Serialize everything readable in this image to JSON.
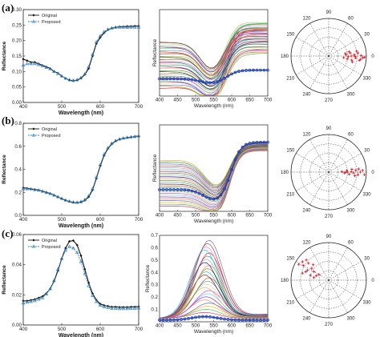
{
  "panel_labels": [
    "(a)",
    "(b)",
    "(c)"
  ],
  "chart_data": [
    {
      "type": "line",
      "panel": "a-left",
      "xlabel": "Wavelength (nm)",
      "ylabel": "Reflectance",
      "xlim": [
        400,
        700
      ],
      "ylim": [
        0,
        0.3
      ],
      "xticks": [
        "400",
        "500",
        "600",
        "700"
      ],
      "yticks": [
        "0.00",
        "0.05",
        "0.10",
        "0.15",
        "0.20",
        "0.25",
        "0.30"
      ],
      "legend": [
        "Original",
        "Proposed"
      ],
      "legend_position": "top-left",
      "x": [
        400,
        410,
        420,
        430,
        440,
        450,
        460,
        470,
        480,
        490,
        500,
        510,
        520,
        530,
        540,
        550,
        560,
        570,
        580,
        590,
        600,
        610,
        620,
        630,
        640,
        650,
        660,
        670,
        680,
        690,
        700
      ],
      "series": [
        {
          "name": "Original",
          "color": "#111111",
          "marker": "diamond",
          "values": [
            0.14,
            0.135,
            0.13,
            0.13,
            0.125,
            0.12,
            0.115,
            0.11,
            0.1,
            0.095,
            0.085,
            0.078,
            0.072,
            0.07,
            0.072,
            0.078,
            0.09,
            0.11,
            0.15,
            0.19,
            0.21,
            0.225,
            0.235,
            0.24,
            0.242,
            0.245,
            0.245,
            0.246,
            0.246,
            0.247,
            0.247
          ]
        },
        {
          "name": "Proposed",
          "color": "#3b86c4",
          "marker": "triangle",
          "values": [
            0.12,
            0.125,
            0.125,
            0.125,
            0.122,
            0.118,
            0.113,
            0.108,
            0.1,
            0.093,
            0.085,
            0.078,
            0.073,
            0.071,
            0.073,
            0.08,
            0.092,
            0.115,
            0.155,
            0.195,
            0.215,
            0.228,
            0.236,
            0.24,
            0.243,
            0.243,
            0.243,
            0.242,
            0.243,
            0.243,
            0.243
          ]
        }
      ]
    },
    {
      "type": "line",
      "panel": "a-middle",
      "xlabel": "Wavelength (nm)",
      "ylabel": "Reflectance",
      "xlim": [
        400,
        700
      ],
      "xticks": [
        "400",
        "450",
        "500",
        "550",
        "600",
        "650",
        "700"
      ],
      "highlight_color": "#1f3fb5",
      "n_background_lines": 36
    },
    {
      "type": "scatter",
      "panel": "a-right",
      "projection": "polar",
      "angle_labels": [
        "0",
        "30",
        "60",
        "90",
        "120",
        "150",
        "180",
        "210",
        "240",
        "270",
        "300",
        "330"
      ],
      "point_color": "#e0202a",
      "points": [
        [
          0.4,
          -6
        ],
        [
          0.46,
          4
        ],
        [
          0.52,
          -2
        ],
        [
          0.58,
          8
        ],
        [
          0.62,
          -10
        ],
        [
          0.68,
          3
        ],
        [
          0.72,
          -4
        ],
        [
          0.78,
          6
        ],
        [
          0.82,
          -8
        ],
        [
          0.86,
          1
        ],
        [
          0.9,
          -3
        ],
        [
          0.55,
          12
        ],
        [
          0.65,
          -14
        ],
        [
          0.75,
          10
        ],
        [
          0.7,
          -1
        ],
        [
          0.6,
          0
        ],
        [
          0.5,
          -9
        ],
        [
          0.45,
          9
        ],
        [
          0.85,
          -6
        ],
        [
          0.95,
          -2
        ]
      ]
    },
    {
      "type": "line",
      "panel": "b-left",
      "xlabel": "Wavelength (nm)",
      "ylabel": "Reflectance",
      "xlim": [
        400,
        700
      ],
      "ylim": [
        0,
        0.8
      ],
      "xticks": [
        "400",
        "500",
        "600",
        "700"
      ],
      "yticks": [
        "0.0",
        "0.2",
        "0.4",
        "0.6",
        "0.8"
      ],
      "legend": [
        "Original",
        "Proposed"
      ],
      "legend_position": "top-left",
      "x": [
        400,
        410,
        420,
        430,
        440,
        450,
        460,
        470,
        480,
        490,
        500,
        510,
        520,
        530,
        540,
        550,
        560,
        570,
        580,
        590,
        600,
        610,
        620,
        630,
        640,
        650,
        660,
        670,
        680,
        690,
        700
      ],
      "series": [
        {
          "name": "Original",
          "color": "#111111",
          "marker": "diamond",
          "values": [
            0.24,
            0.235,
            0.23,
            0.225,
            0.22,
            0.21,
            0.2,
            0.19,
            0.175,
            0.16,
            0.145,
            0.13,
            0.12,
            0.112,
            0.11,
            0.115,
            0.13,
            0.16,
            0.22,
            0.32,
            0.43,
            0.52,
            0.58,
            0.62,
            0.645,
            0.66,
            0.67,
            0.675,
            0.68,
            0.685,
            0.69
          ]
        },
        {
          "name": "Proposed",
          "color": "#3b86c4",
          "marker": "triangle",
          "values": [
            0.23,
            0.23,
            0.228,
            0.222,
            0.218,
            0.208,
            0.198,
            0.188,
            0.174,
            0.16,
            0.146,
            0.132,
            0.122,
            0.114,
            0.112,
            0.118,
            0.135,
            0.168,
            0.23,
            0.33,
            0.44,
            0.53,
            0.585,
            0.625,
            0.648,
            0.662,
            0.67,
            0.676,
            0.68,
            0.684,
            0.688
          ]
        }
      ]
    },
    {
      "type": "line",
      "panel": "b-middle",
      "xlabel": "Wavelength (nm)",
      "ylabel": "Reflectance",
      "xlim": [
        400,
        700
      ],
      "xticks": [
        "400",
        "450",
        "500",
        "550",
        "600",
        "650",
        "700"
      ],
      "highlight_color": "#1f3fb5",
      "n_background_lines": 26
    },
    {
      "type": "scatter",
      "panel": "b-right",
      "projection": "polar",
      "angle_labels": [
        "0",
        "30",
        "60",
        "90",
        "120",
        "150",
        "180",
        "210",
        "240",
        "270",
        "300",
        "330"
      ],
      "point_color": "#e0202a",
      "points": [
        [
          0.35,
          2
        ],
        [
          0.42,
          -3
        ],
        [
          0.48,
          5
        ],
        [
          0.55,
          -6
        ],
        [
          0.6,
          1
        ],
        [
          0.66,
          -2
        ],
        [
          0.72,
          4
        ],
        [
          0.78,
          -5
        ],
        [
          0.84,
          0
        ],
        [
          0.9,
          3
        ],
        [
          0.95,
          -4
        ],
        [
          0.5,
          0
        ],
        [
          0.62,
          7
        ],
        [
          0.7,
          -8
        ],
        [
          0.8,
          6
        ],
        [
          0.45,
          -1
        ]
      ]
    },
    {
      "type": "line",
      "panel": "c-left",
      "xlabel": "Wavelength (nm)",
      "ylabel": "Reflectance",
      "xlim": [
        400,
        700
      ],
      "ylim": [
        0,
        0.06
      ],
      "xticks": [
        "400",
        "500",
        "600",
        "700"
      ],
      "yticks": [
        "0.00",
        "0.02",
        "0.04",
        "0.06"
      ],
      "legend": [
        "Original",
        "Proposed"
      ],
      "legend_position": "top-left",
      "x": [
        400,
        410,
        420,
        430,
        440,
        450,
        460,
        470,
        480,
        490,
        500,
        510,
        520,
        530,
        540,
        550,
        560,
        570,
        580,
        590,
        600,
        610,
        620,
        630,
        640,
        650,
        660,
        670,
        680,
        690,
        700
      ],
      "series": [
        {
          "name": "Original",
          "color": "#111111",
          "marker": "diamond",
          "values": [
            0.016,
            0.016,
            0.0165,
            0.017,
            0.018,
            0.019,
            0.021,
            0.024,
            0.029,
            0.036,
            0.044,
            0.051,
            0.0555,
            0.056,
            0.053,
            0.046,
            0.037,
            0.028,
            0.021,
            0.0165,
            0.014,
            0.013,
            0.0125,
            0.012,
            0.012,
            0.0118,
            0.0118,
            0.0118,
            0.012,
            0.012,
            0.0122
          ]
        },
        {
          "name": "Proposed",
          "color": "#3b86c4",
          "marker": "triangle",
          "values": [
            0.0145,
            0.015,
            0.0155,
            0.016,
            0.017,
            0.018,
            0.0205,
            0.024,
            0.0295,
            0.037,
            0.044,
            0.0495,
            0.052,
            0.051,
            0.048,
            0.042,
            0.034,
            0.026,
            0.0195,
            0.0155,
            0.013,
            0.012,
            0.0115,
            0.011,
            0.011,
            0.0108,
            0.0108,
            0.0108,
            0.011,
            0.011,
            0.0112
          ]
        }
      ]
    },
    {
      "type": "line",
      "panel": "c-middle",
      "xlabel": "Wavelength (nm)",
      "ylabel": "Reflectance",
      "xlim": [
        400,
        700
      ],
      "ylim": [
        0,
        0.7
      ],
      "xticks": [
        "400",
        "450",
        "500",
        "550",
        "600",
        "650",
        "700"
      ],
      "yticks": [
        "0.1",
        "0.2",
        "0.3",
        "0.4",
        "0.5",
        "0.6",
        "0.7"
      ],
      "highlight_color": "#1f3fb5",
      "n_background_lines": 24
    },
    {
      "type": "scatter",
      "panel": "c-right",
      "projection": "polar",
      "angle_labels": [
        "0",
        "30",
        "60",
        "90",
        "120",
        "150",
        "180",
        "210",
        "240",
        "270",
        "300",
        "330"
      ],
      "point_color": "#e0202a",
      "points": [
        [
          0.35,
          160
        ],
        [
          0.45,
          150
        ],
        [
          0.55,
          145
        ],
        [
          0.62,
          155
        ],
        [
          0.7,
          140
        ],
        [
          0.78,
          150
        ],
        [
          0.85,
          145
        ],
        [
          0.4,
          170
        ],
        [
          0.5,
          165
        ],
        [
          0.65,
          160
        ],
        [
          0.3,
          150
        ],
        [
          0.58,
          135
        ],
        [
          0.72,
          165
        ],
        [
          0.8,
          138
        ],
        [
          0.9,
          152
        ]
      ]
    }
  ]
}
